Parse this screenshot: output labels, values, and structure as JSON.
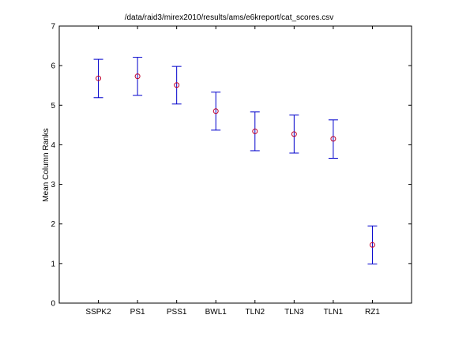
{
  "chart_data": {
    "type": "scatter",
    "title": "/data/raid3/mirex2010/results/ams/e6kreport/cat_scores.csv",
    "xlabel": "",
    "ylabel": "Mean Column Ranks",
    "categories": [
      "SSPK2",
      "PS1",
      "PSS1",
      "BWL1",
      "TLN2",
      "TLN3",
      "TLN1",
      "RZ1"
    ],
    "values": [
      5.68,
      5.73,
      5.51,
      4.85,
      4.34,
      4.27,
      4.15,
      1.47
    ],
    "lower": [
      5.19,
      5.25,
      5.03,
      4.37,
      3.85,
      3.79,
      3.66,
      0.99
    ],
    "upper": [
      6.16,
      6.21,
      5.98,
      5.33,
      4.83,
      4.75,
      4.63,
      1.95
    ],
    "ylim": [
      0,
      7
    ],
    "yticks": [
      0,
      1,
      2,
      3,
      4,
      5,
      6,
      7
    ],
    "grid": false,
    "colors": {
      "marker": "#c0002a",
      "errorbar": "#0000cc",
      "axis": "#000000"
    }
  }
}
